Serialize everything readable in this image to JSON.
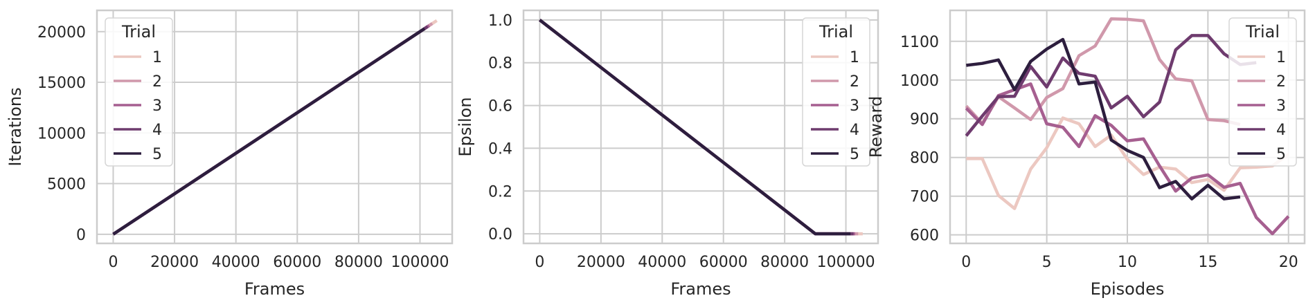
{
  "chart_data": [
    {
      "type": "line",
      "xlabel": "Frames",
      "ylabel": "Iterations",
      "xlim": [
        -5300,
        110500
      ],
      "ylim": [
        -900,
        22100
      ],
      "xticks": [
        0,
        20000,
        40000,
        60000,
        80000,
        100000
      ],
      "yticks": [
        0,
        5000,
        10000,
        15000,
        20000
      ],
      "grid": true,
      "legend": {
        "title": "Trial",
        "position": "top-left"
      },
      "series": [
        {
          "name": "1",
          "color": "#ecc8c1",
          "x": [
            0,
            105500
          ],
          "y": [
            0,
            21100
          ]
        },
        {
          "name": "2",
          "color": "#d098ab",
          "x": [
            0,
            104000
          ],
          "y": [
            0,
            20800
          ]
        },
        {
          "name": "3",
          "color": "#a65f90",
          "x": [
            0,
            103000
          ],
          "y": [
            0,
            20600
          ]
        },
        {
          "name": "4",
          "color": "#6e3b6e",
          "x": [
            0,
            102500
          ],
          "y": [
            0,
            20500
          ]
        },
        {
          "name": "5",
          "color": "#2d1e3e",
          "x": [
            0,
            101500
          ],
          "y": [
            0,
            20300
          ]
        }
      ]
    },
    {
      "type": "line",
      "xlabel": "Frames",
      "ylabel": "Epsilon",
      "xlim": [
        -5300,
        110500
      ],
      "ylim": [
        -0.045,
        1.045
      ],
      "xticks": [
        0,
        20000,
        40000,
        60000,
        80000,
        100000
      ],
      "yticks": [
        0.0,
        0.2,
        0.4,
        0.6,
        0.8,
        1.0
      ],
      "ytick_labels": [
        "0.0",
        "0.2",
        "0.4",
        "0.6",
        "0.8",
        "1.0"
      ],
      "grid": true,
      "legend": {
        "title": "Trial",
        "position": "top-right"
      },
      "series": [
        {
          "name": "1",
          "color": "#ecc8c1",
          "x": [
            0,
            90000,
            105500
          ],
          "y": [
            1.0,
            0.0,
            0.0
          ]
        },
        {
          "name": "2",
          "color": "#d098ab",
          "x": [
            0,
            90000,
            104000
          ],
          "y": [
            1.0,
            0.0,
            0.0
          ]
        },
        {
          "name": "3",
          "color": "#a65f90",
          "x": [
            0,
            90000,
            103000
          ],
          "y": [
            1.0,
            0.0,
            0.0
          ]
        },
        {
          "name": "4",
          "color": "#6e3b6e",
          "x": [
            0,
            90000,
            102500
          ],
          "y": [
            1.0,
            0.0,
            0.0
          ]
        },
        {
          "name": "5",
          "color": "#2d1e3e",
          "x": [
            0,
            90000,
            101500
          ],
          "y": [
            1.0,
            0.0,
            0.0
          ]
        }
      ]
    },
    {
      "type": "line",
      "xlabel": "Episodes",
      "ylabel": "Reward",
      "xlim": [
        -1,
        21
      ],
      "ylim": [
        578,
        1180
      ],
      "xticks": [
        0,
        5,
        10,
        15,
        20
      ],
      "yticks": [
        600,
        700,
        800,
        900,
        1000,
        1100
      ],
      "grid": true,
      "legend": {
        "title": "Trial",
        "position": "top-right"
      },
      "series": [
        {
          "name": "1",
          "color": "#ecc8c1",
          "x": [
            0,
            1,
            2,
            3,
            4,
            5,
            6,
            7,
            8,
            9,
            10,
            11,
            12,
            13,
            14,
            15,
            16,
            17,
            18,
            19,
            20
          ],
          "y": [
            797,
            797,
            702,
            668,
            770,
            825,
            902,
            887,
            828,
            858,
            795,
            756,
            775,
            770,
            735,
            743,
            715,
            773,
            775,
            778,
            808
          ]
        },
        {
          "name": "2",
          "color": "#d098ab",
          "x": [
            0,
            1,
            2,
            3,
            4,
            5,
            6,
            7,
            8,
            9,
            10,
            11,
            12,
            13,
            14,
            15,
            16,
            17
          ],
          "y": [
            933,
            888,
            957,
            928,
            898,
            955,
            978,
            1063,
            1088,
            1158,
            1157,
            1153,
            1053,
            1003,
            998,
            898,
            895,
            885
          ]
        },
        {
          "name": "3",
          "color": "#a65f90",
          "x": [
            0,
            1,
            2,
            3,
            4,
            5,
            6,
            7,
            8,
            9,
            10,
            11,
            12,
            13,
            14,
            15,
            16,
            17,
            18,
            19,
            20
          ],
          "y": [
            927,
            885,
            960,
            975,
            990,
            887,
            878,
            828,
            908,
            883,
            843,
            848,
            778,
            713,
            747,
            755,
            723,
            733,
            645,
            603,
            648
          ]
        },
        {
          "name": "4",
          "color": "#6e3b6e",
          "x": [
            0,
            1,
            2,
            3,
            4,
            5,
            6,
            7,
            8,
            9,
            10,
            11,
            12,
            13,
            14,
            15,
            16,
            17,
            18
          ],
          "y": [
            856,
            907,
            957,
            958,
            1035,
            982,
            1057,
            1017,
            1010,
            928,
            958,
            905,
            943,
            1078,
            1115,
            1115,
            1068,
            1040,
            1045
          ]
        },
        {
          "name": "5",
          "color": "#2d1e3e",
          "x": [
            0,
            1,
            2,
            3,
            4,
            5,
            6,
            7,
            8,
            9,
            10,
            11,
            12,
            13,
            14,
            15,
            16,
            17
          ],
          "y": [
            1038,
            1043,
            1052,
            975,
            1048,
            1080,
            1105,
            990,
            995,
            845,
            818,
            800,
            722,
            738,
            693,
            728,
            693,
            698
          ]
        }
      ]
    }
  ]
}
